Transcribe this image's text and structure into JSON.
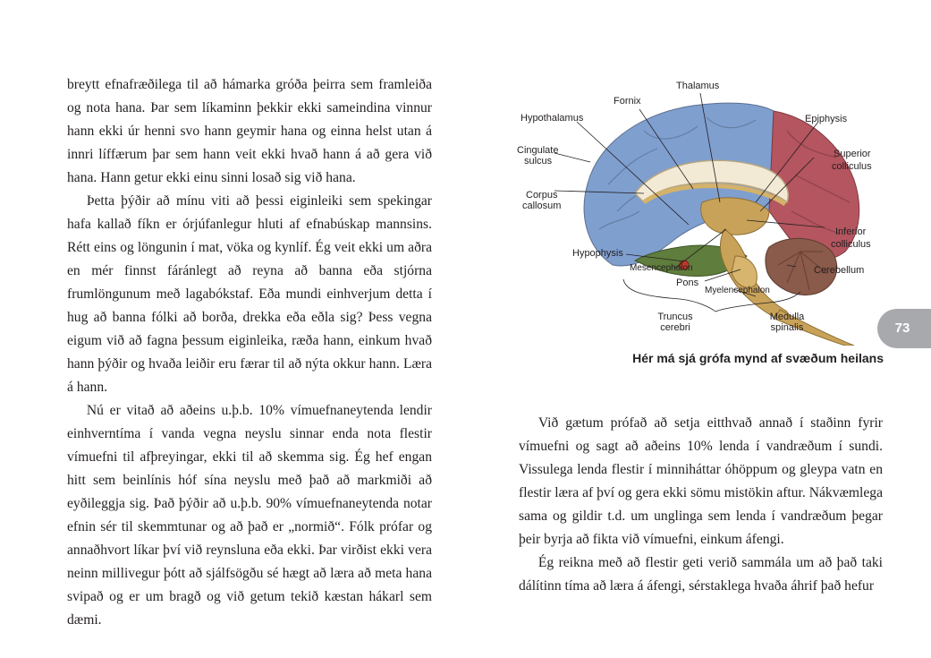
{
  "left_column": {
    "paragraphs": [
      "breytt efnafræðilega til að hámarka gróða þeirra sem framleiða og nota hana. Þar sem líkaminn þekkir ekki sameindina vinnur hann ekki úr henni svo hann geymir hana og einna helst utan á innri líffærum þar sem hann veit ekki hvað hann á að gera við hana. Hann getur ekki einu sinni losað sig við hana.",
      "Þetta þýðir að mínu viti að þessi eiginleiki sem spekingar hafa kallað fíkn er órjúfanlegur hluti af efnabúskap mannsins. Rétt eins og löngunin í mat, vöka og kynlíf. Ég veit ekki um aðra en mér finnst fáránlegt að reyna að banna eða stjórna frumlöngunum með lagabókstaf. Eða mundi einhverjum detta í hug að banna fólki að borða, drekka eða eðla sig? Þess vegna eigum við að fagna þessum eiginleika, ræða hann, einkum hvað hann þýðir og hvaða leiðir eru færar til að nýta okkur hann. Læra á hann.",
      "Nú er vitað að aðeins u.þ.b. 10% vímuefnaneytenda lendir einhverntíma í vanda vegna neyslu sinnar enda nota flestir vímuefni til afþreyingar, ekki til að skemma sig. Ég hef engan hitt sem beinlínis hóf sína neyslu með það að markmiði að eyðileggja sig. Það þýðir að u.þ.b. 90% vímuefnaneytenda notar efnin sér til skemmtunar og að það er „normið“. Fólk prófar og annaðhvort líkar því við reynsluna eða ekki. Þar virðist ekki vera neinn millivegur þótt að sjálfsögðu sé hægt að læra að meta hana svipað og er um bragð og við getum tekið kæstan hákarl sem dæmi."
    ]
  },
  "figure": {
    "labels": {
      "thalamus": "Thalamus",
      "fornix": "Fornix",
      "hypothalamus": "Hypothalamus",
      "epiphysis": "Epiphysis",
      "cingulate_1": "Cingulate",
      "cingulate_2": "sulcus",
      "superior_1": "Superior",
      "superior_2": "colliculus",
      "corpus_1": "Corpus",
      "corpus_2": "callosum",
      "inferior_1": "Inferior",
      "inferior_2": "colliculus",
      "hypophysis": "Hypophysis",
      "cerebellum": "Cerebellum",
      "mesencephalon": "Mesencephalon",
      "pons": "Pons",
      "myelencephalon": "Myelencephalon",
      "truncus_1": "Truncus",
      "truncus_2": "cerebri",
      "medulla_1": "Medulla",
      "medulla_2": "spinalis"
    },
    "caption": "Hér má sjá grófa mynd af svæðum heilans",
    "colors": {
      "cortex_blue": "#7f9fcf",
      "cortex_red": "#b4555f",
      "brainstem": "#c9a25a",
      "cerebellum": "#8a5a4a",
      "temporal_green": "#5f7d3c",
      "corpus_callosum": "#f3ead6"
    }
  },
  "right_column": {
    "paragraphs": [
      "Við gætum prófað að setja eitthvað annað í staðinn fyrir vímuefni og sagt að aðeins 10% lenda í vandræðum í sundi. Vissulega lenda flestir í minniháttar óhöppum og gleypa vatn en flestir læra af því og gera ekki sömu mistökin aftur. Nákvæmlega sama og gildir t.d. um unglinga sem lenda í vandræðum þegar þeir byrja að fikta við vímuefni, einkum áfengi.",
      "Ég reikna með að flestir geti verið sammála um að það taki dálítinn tíma að læra á áfengi, sérstaklega hvaða áhrif það hefur"
    ]
  },
  "page_number": "73"
}
